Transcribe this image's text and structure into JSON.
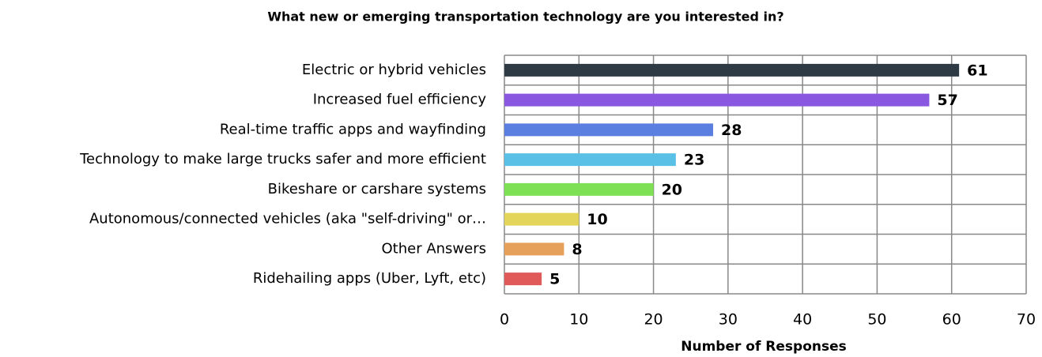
{
  "chart_data": {
    "type": "bar",
    "orientation": "horizontal",
    "title": "What new or emerging transportation technology are you interested in?",
    "x_label": "Number of Responses",
    "categories": [
      "Electric or hybrid vehicles",
      "Increased fuel efficiency",
      "Real-time traffic apps and wayfinding",
      "Technology to make large trucks safer and more efficient",
      "Bikeshare or carshare systems",
      "Autonomous/connected vehicles (aka \"self-driving\" or…",
      "Other Answers",
      "Ridehailing apps (Uber, Lyft, etc)"
    ],
    "values": [
      61,
      57,
      28,
      23,
      20,
      10,
      8,
      5
    ],
    "colors": [
      "#2e3b45",
      "#8a57e0",
      "#5b7fe0",
      "#5bc0e6",
      "#7ee055",
      "#e3d45a",
      "#e6a05a",
      "#e05a5a"
    ],
    "xlim": [
      0,
      70
    ],
    "xticks": [
      0,
      10,
      20,
      30,
      40,
      50,
      60,
      70
    ],
    "grid": true
  }
}
